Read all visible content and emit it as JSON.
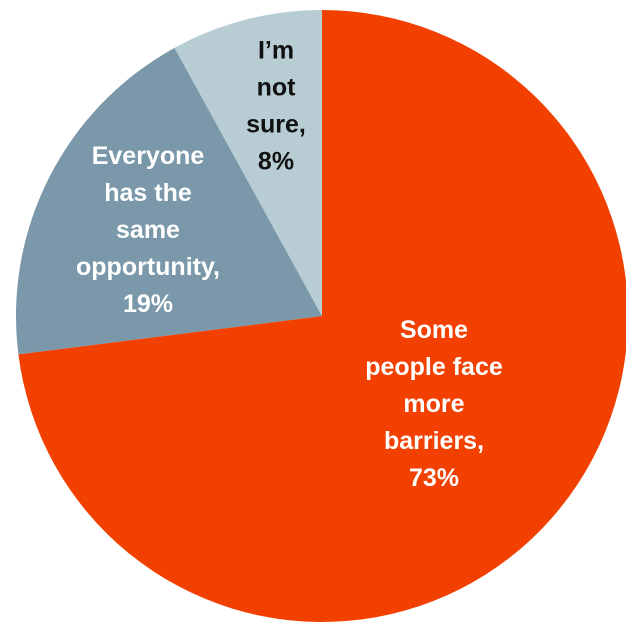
{
  "chart_data": {
    "type": "pie",
    "title": "",
    "start_angle_deg": 0,
    "direction": "clockwise",
    "slices": [
      {
        "label": "Some people face more barriers",
        "value": 73,
        "label_lines": [
          "Some",
          "people face",
          "more",
          "barriers,",
          "73%"
        ],
        "color": "#f24000",
        "text_color": "#ffffff"
      },
      {
        "label": "Everyone has the same opportunity",
        "value": 19,
        "label_lines": [
          "Everyone",
          "has the",
          "same",
          "opportunity,",
          "19%"
        ],
        "color": "#7a98aa",
        "text_color": "#ffffff"
      },
      {
        "label": "I’m not sure",
        "value": 8,
        "label_lines": [
          "I’m",
          "not",
          "sure,",
          "8%"
        ],
        "color": "#b7cdd3",
        "text_color": "#111111"
      }
    ]
  }
}
